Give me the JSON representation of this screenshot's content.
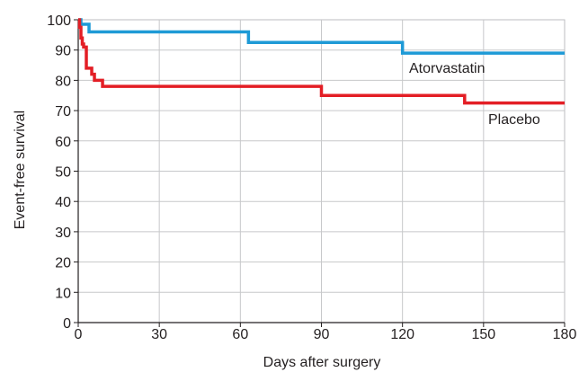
{
  "chart_data": {
    "type": "line",
    "line_shape": "step",
    "xlabel": "Days after surgery",
    "ylabel": "Event-free survival",
    "xlim": [
      0,
      180
    ],
    "ylim": [
      0,
      100
    ],
    "xticks": [
      0,
      30,
      60,
      90,
      120,
      150,
      180
    ],
    "yticks": [
      0,
      10,
      20,
      30,
      40,
      50,
      60,
      70,
      80,
      90,
      100
    ],
    "xtick_labels": [
      "0",
      "30",
      "60",
      "90",
      "120",
      "150",
      "180"
    ],
    "ytick_labels": [
      "0",
      "10",
      "20",
      "30",
      "40",
      "50",
      "60",
      "70",
      "80",
      "90",
      "100"
    ],
    "grid": true,
    "series": [
      {
        "name": "Atorvastatin",
        "color": "#1e9ad6",
        "x": [
          0,
          1,
          4,
          63,
          120,
          180
        ],
        "values": [
          100,
          98.5,
          96,
          92.5,
          89,
          89
        ]
      },
      {
        "name": "Placebo",
        "color": "#e31e25",
        "x": [
          0,
          0.5,
          1,
          1.5,
          2,
          3,
          5,
          6,
          9,
          90,
          143,
          180
        ],
        "values": [
          100,
          97.5,
          94,
          92,
          91,
          84,
          82,
          80,
          78,
          75,
          72.5,
          72.5
        ]
      }
    ]
  }
}
